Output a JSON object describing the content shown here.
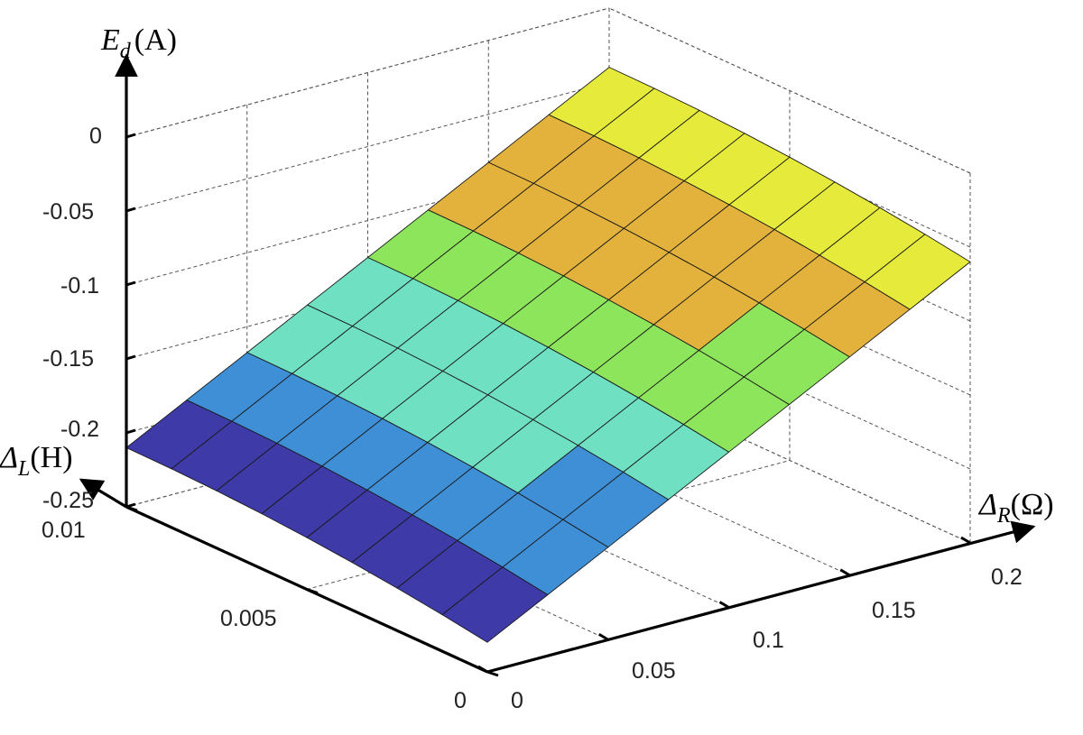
{
  "chart_data": {
    "type": "surface3d",
    "title": "",
    "xlabel": {
      "symbol": "Δ",
      "sub": "R",
      "unit": "(Ω)"
    },
    "ylabel": {
      "symbol": "Δ",
      "sub": "L",
      "unit": "(H)"
    },
    "zlabel": {
      "symbol": "E",
      "sub": "d",
      "unit": "(A)"
    },
    "x_ticks": [
      "0",
      "0.05",
      "0.1",
      "0.15",
      "0.2"
    ],
    "y_ticks": [
      "0",
      "0.005",
      "0.01"
    ],
    "z_ticks": [
      "0",
      "-0.05",
      "-0.1",
      "-0.15",
      "-0.2",
      "-0.25"
    ],
    "xlim": [
      0,
      0.2
    ],
    "ylim": [
      0,
      0.01
    ],
    "zlim": [
      -0.25,
      0
    ],
    "grid": true,
    "colormap": [
      "#3e3aa8",
      "#3f8fd6",
      "#6fe0c2",
      "#8de55c",
      "#e3b23c",
      "#e6ea3a"
    ],
    "x": [
      0,
      0.025,
      0.05,
      0.075,
      0.1,
      0.125,
      0.15,
      0.175,
      0.2
    ],
    "y": [
      0,
      0.00125,
      0.0025,
      0.00375,
      0.005,
      0.00625,
      0.0075,
      0.00875,
      0.01
    ],
    "surface_rule": "Ed = -0.21 + 0.17*x/0.2 - 0.02*(1 - y/0.01)^2",
    "z_range": [
      -0.23,
      -0.04
    ]
  }
}
